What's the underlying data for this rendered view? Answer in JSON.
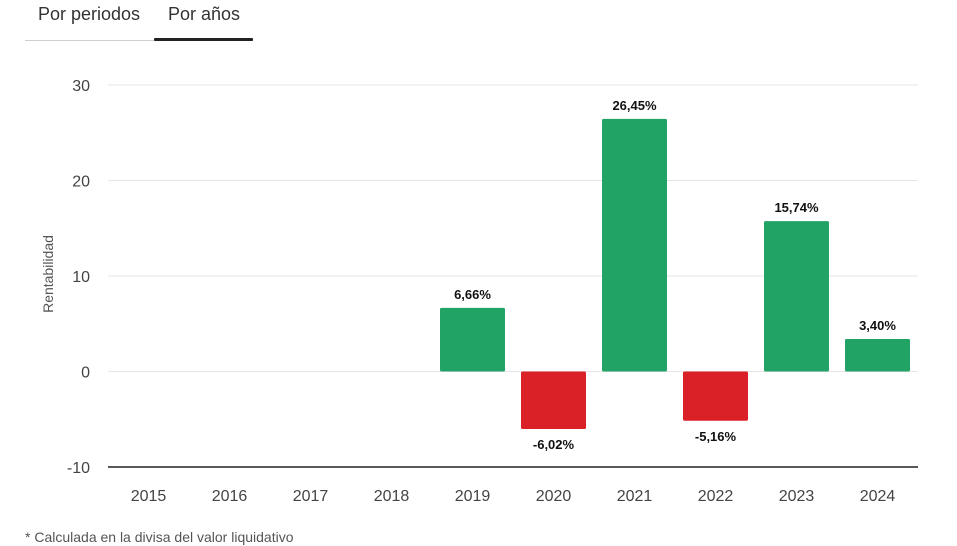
{
  "tabs": [
    {
      "label": "Por periodos",
      "active": false
    },
    {
      "label": "Por años",
      "active": true
    }
  ],
  "footnote": "* Calculada en la divisa del valor liquidativo",
  "colors": {
    "positive": "#21a366",
    "negative": "#d92127",
    "grid": "#e6e6e6",
    "axis": "#222222"
  },
  "chart_data": {
    "type": "bar",
    "ylabel": "Rentabilidad",
    "ylim": [
      -10,
      30
    ],
    "yticks": [
      -10,
      0,
      10,
      20,
      30
    ],
    "grid": true,
    "categories": [
      "2015",
      "2016",
      "2017",
      "2018",
      "2019",
      "2020",
      "2021",
      "2022",
      "2023",
      "2024"
    ],
    "values": [
      null,
      null,
      null,
      null,
      6.66,
      -6.02,
      26.45,
      -5.16,
      15.74,
      3.4
    ],
    "data_labels": [
      "",
      "",
      "",
      "",
      "6,66%",
      "-6,02%",
      "26,45%",
      "-5,16%",
      "15,74%",
      "3,40%"
    ]
  }
}
